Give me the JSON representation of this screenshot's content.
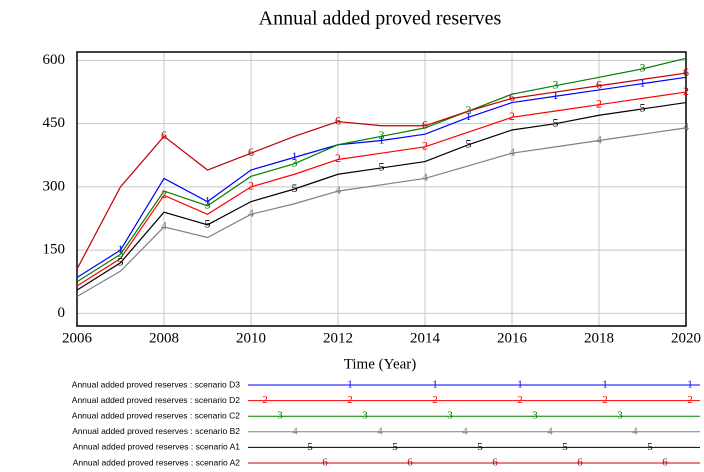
{
  "chart_data": {
    "type": "line",
    "title": "Annual added proved reserves",
    "x_label": "Time (Year)",
    "x": [
      2006,
      2007,
      2008,
      2009,
      2010,
      2011,
      2012,
      2013,
      2014,
      2015,
      2016,
      2017,
      2018,
      2019,
      2020
    ],
    "xlim": [
      2006,
      2020
    ],
    "xticks": [
      2006,
      2008,
      2010,
      2012,
      2014,
      2016,
      2018,
      2020
    ],
    "ylim": [
      -30,
      620
    ],
    "yticks": [
      0,
      150,
      300,
      450,
      600
    ],
    "grid": true,
    "series": [
      {
        "name": "Annual added proved reserves : scenario D3",
        "marker": "1",
        "color": "#0000ff",
        "values": [
          85,
          150,
          320,
          265,
          340,
          370,
          400,
          410,
          425,
          465,
          500,
          515,
          530,
          545,
          560
        ]
      },
      {
        "name": "Annual added proved reserves : scenario D2",
        "marker": "2",
        "color": "#ff0000",
        "values": [
          65,
          130,
          280,
          235,
          300,
          330,
          365,
          380,
          395,
          430,
          465,
          480,
          495,
          510,
          525
        ]
      },
      {
        "name": "Annual added proved reserves : scenario C2",
        "marker": "3",
        "color": "#008000",
        "values": [
          75,
          140,
          290,
          255,
          325,
          355,
          400,
          420,
          440,
          480,
          520,
          540,
          560,
          580,
          605
        ]
      },
      {
        "name": "Annual added proved reserves : scenario B2",
        "marker": "4",
        "color": "#808080",
        "values": [
          40,
          100,
          205,
          180,
          235,
          260,
          290,
          305,
          320,
          350,
          380,
          395,
          410,
          425,
          440
        ]
      },
      {
        "name": "Annual added proved reserves : scenario A1",
        "marker": "5",
        "color": "#000000",
        "values": [
          55,
          120,
          240,
          210,
          265,
          295,
          330,
          345,
          360,
          400,
          435,
          450,
          470,
          485,
          500
        ]
      },
      {
        "name": "Annual added proved reserves : scenario A2",
        "marker": "6",
        "color": "#c00000",
        "values": [
          105,
          300,
          420,
          340,
          380,
          420,
          455,
          445,
          445,
          480,
          510,
          525,
          540,
          555,
          570
        ]
      }
    ]
  }
}
